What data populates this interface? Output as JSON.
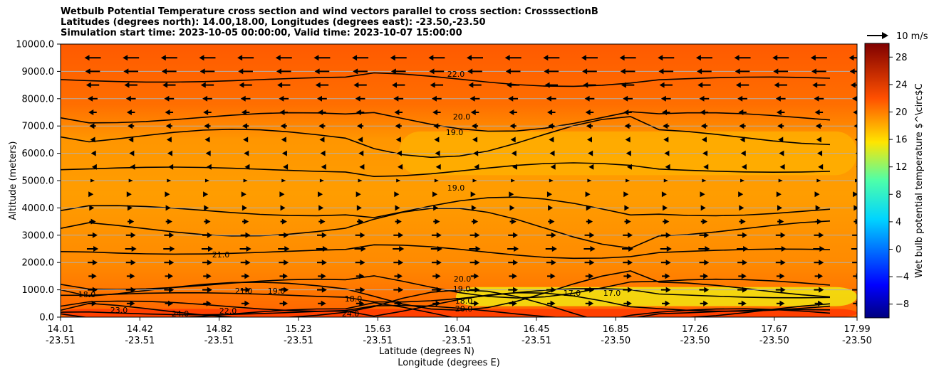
{
  "title_lines": [
    "Wetbulb Potential Temperature cross section and wind vectors parallel to cross section: CrosssectionB",
    "Latitudes (degrees north): 14.00,18.00, Longitudes (degrees east): -23.50,-23.50",
    "Simulation start time: 2023-10-05 00:00:00, Valid time: 2023-10-07 15:00:00"
  ],
  "chart_data": {
    "type": "heatmap",
    "xlabel_lat": "Latitude (degrees N)",
    "xlabel_lon": "Longitude (degrees E)",
    "ylabel": "Altitude (meters)",
    "ylim": [
      0,
      10000
    ],
    "y_ticks": [
      "0.0",
      "1000.0",
      "2000.0",
      "3000.0",
      "4000.0",
      "5000.0",
      "6000.0",
      "7000.0",
      "8000.0",
      "9000.0",
      "10000.0"
    ],
    "x_ticks": [
      {
        "lat": "14.01",
        "lon": "-23.51"
      },
      {
        "lat": "14.42",
        "lon": "-23.51"
      },
      {
        "lat": "14.82",
        "lon": "-23.51"
      },
      {
        "lat": "15.23",
        "lon": "-23.51"
      },
      {
        "lat": "15.63",
        "lon": "-23.51"
      },
      {
        "lat": "16.04",
        "lon": "-23.51"
      },
      {
        "lat": "16.45",
        "lon": "-23.51"
      },
      {
        "lat": "16.85",
        "lon": "-23.50"
      },
      {
        "lat": "17.26",
        "lon": "-23.50"
      },
      {
        "lat": "17.67",
        "lon": "-23.50"
      },
      {
        "lat": "17.99",
        "lon": "-23.50"
      }
    ],
    "grid": "horizontal",
    "colorbar": {
      "label": "Wet bulb potential temperature $^\\circ$C",
      "ticks": [
        "−8",
        "−4",
        "0",
        "4",
        "8",
        "12",
        "16",
        "20",
        "24",
        "28"
      ],
      "range": [
        -10,
        30
      ],
      "colormap": "jet"
    },
    "quiver_key": {
      "label": "10 m/s",
      "placement": "top-right"
    },
    "contour_labels": [
      "22.0",
      "20.0",
      "19.0",
      "19.0",
      "21.0",
      "20.0",
      "19.0",
      "18.0",
      "18.0",
      "17.0",
      "17.0",
      "24.0",
      "24.0",
      "23.0",
      "22.0",
      "21.0",
      "20.0",
      "19.0",
      "18.0"
    ],
    "field_levels": [
      {
        "level": 19.5,
        "altitude_range": [
          5200,
          6800
        ],
        "color": "#ffb400"
      },
      {
        "level": 17.5,
        "altitude_range": [
          400,
          1100
        ],
        "color": "#f0ff14"
      },
      {
        "level": 24,
        "altitude_range": [
          0,
          300
        ],
        "color": "#ff3a00"
      }
    ],
    "wind": [
      {
        "altitude": 9500,
        "u": -10
      },
      {
        "altitude": 9000,
        "u": -9
      },
      {
        "altitude": 8500,
        "u": -8
      },
      {
        "altitude": 8000,
        "u": -6
      },
      {
        "altitude": 7500,
        "u": -5
      },
      {
        "altitude": 7000,
        "u": -4
      },
      {
        "altitude": 6500,
        "u": -3
      },
      {
        "altitude": 6000,
        "u": -2
      },
      {
        "altitude": 5500,
        "u": -1
      },
      {
        "altitude": 5000,
        "u": 0
      },
      {
        "altitude": 4500,
        "u": 1
      },
      {
        "altitude": 4000,
        "u": 2
      },
      {
        "altitude": 3500,
        "u": 4
      },
      {
        "altitude": 3000,
        "u": 6
      },
      {
        "altitude": 2500,
        "u": 7
      },
      {
        "altitude": 2000,
        "u": 6
      },
      {
        "altitude": 1500,
        "u": 5
      },
      {
        "altitude": 1000,
        "u": 6
      },
      {
        "altitude": 500,
        "u": 5
      }
    ]
  }
}
